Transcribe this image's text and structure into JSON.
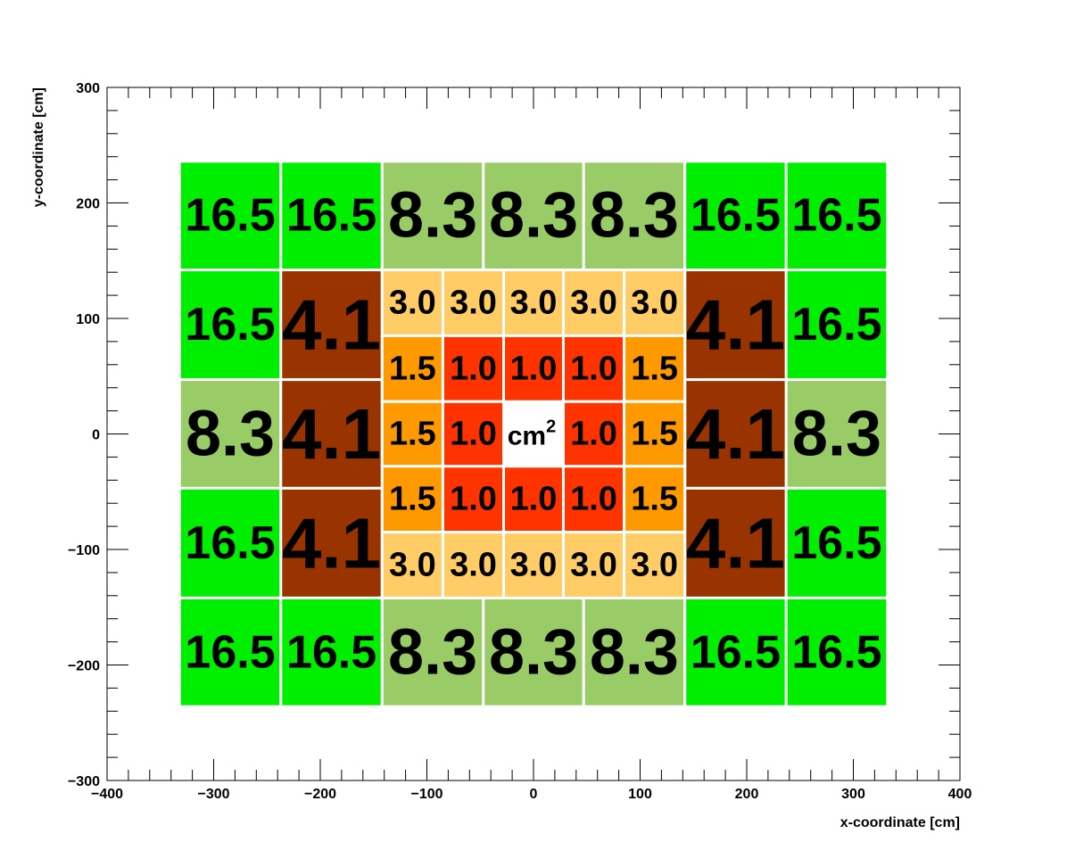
{
  "chart_data": {
    "type": "heatmap",
    "title": "",
    "xlabel": "x-coordinate [cm]",
    "ylabel": "y-coordinate [cm]",
    "xlim": [
      -400,
      400
    ],
    "ylim": [
      -300,
      300
    ],
    "x_ticks": [
      "−400",
      "−300",
      "−200",
      "−100",
      "0",
      "100",
      "200",
      "300",
      "400"
    ],
    "x_tick_values": [
      -400,
      -300,
      -200,
      -100,
      0,
      100,
      200,
      300,
      400
    ],
    "y_ticks": [
      "−300",
      "−200",
      "−100",
      "0",
      "100",
      "200",
      "300"
    ],
    "y_tick_values": [
      -300,
      -200,
      -100,
      0,
      100,
      200,
      300
    ],
    "grid": false,
    "colors": {
      "16.5": "#00ee00",
      "8.3": "#99cc66",
      "4.1": "#993300",
      "3.0": "#ffcc66",
      "1.5": "#ff9900",
      "1.0": "#ff3300",
      "center": "#ffffff"
    },
    "center_label": {
      "text": "cm",
      "superscript": "2",
      "x": 0,
      "y": 0
    },
    "cells": [
      {
        "x0": -332,
        "x1": -237,
        "y0": 142,
        "y1": 236,
        "label": "16.5"
      },
      {
        "x0": -237,
        "x1": -142,
        "y0": 142,
        "y1": 236,
        "label": "16.5"
      },
      {
        "x0": -142,
        "x1": -47,
        "y0": 142,
        "y1": 236,
        "label": "8.3"
      },
      {
        "x0": -47,
        "x1": 47,
        "y0": 142,
        "y1": 236,
        "label": "8.3"
      },
      {
        "x0": 47,
        "x1": 142,
        "y0": 142,
        "y1": 236,
        "label": "8.3"
      },
      {
        "x0": 142,
        "x1": 237,
        "y0": 142,
        "y1": 236,
        "label": "16.5"
      },
      {
        "x0": 237,
        "x1": 332,
        "y0": 142,
        "y1": 236,
        "label": "16.5"
      },
      {
        "x0": -332,
        "x1": -237,
        "y0": 47,
        "y1": 142,
        "label": "16.5"
      },
      {
        "x0": -237,
        "x1": -142,
        "y0": 47,
        "y1": 142,
        "label": "4.1"
      },
      {
        "x0": 142,
        "x1": 237,
        "y0": 47,
        "y1": 142,
        "label": "4.1"
      },
      {
        "x0": 237,
        "x1": 332,
        "y0": 47,
        "y1": 142,
        "label": "16.5"
      },
      {
        "x0": -332,
        "x1": -237,
        "y0": -47,
        "y1": 47,
        "label": "8.3"
      },
      {
        "x0": -237,
        "x1": -142,
        "y0": -47,
        "y1": 47,
        "label": "4.1"
      },
      {
        "x0": 142,
        "x1": 237,
        "y0": -47,
        "y1": 47,
        "label": "4.1"
      },
      {
        "x0": 237,
        "x1": 332,
        "y0": -47,
        "y1": 47,
        "label": "8.3"
      },
      {
        "x0": -332,
        "x1": -237,
        "y0": -142,
        "y1": -47,
        "label": "16.5"
      },
      {
        "x0": -237,
        "x1": -142,
        "y0": -142,
        "y1": -47,
        "label": "4.1"
      },
      {
        "x0": 142,
        "x1": 237,
        "y0": -142,
        "y1": -47,
        "label": "4.1"
      },
      {
        "x0": 237,
        "x1": 332,
        "y0": -142,
        "y1": -47,
        "label": "16.5"
      },
      {
        "x0": -332,
        "x1": -237,
        "y0": -236,
        "y1": -142,
        "label": "16.5"
      },
      {
        "x0": -237,
        "x1": -142,
        "y0": -236,
        "y1": -142,
        "label": "16.5"
      },
      {
        "x0": -142,
        "x1": -47,
        "y0": -236,
        "y1": -142,
        "label": "8.3"
      },
      {
        "x0": -47,
        "x1": 47,
        "y0": -236,
        "y1": -142,
        "label": "8.3"
      },
      {
        "x0": 47,
        "x1": 142,
        "y0": -236,
        "y1": -142,
        "label": "8.3"
      },
      {
        "x0": 142,
        "x1": 237,
        "y0": -236,
        "y1": -142,
        "label": "16.5"
      },
      {
        "x0": 237,
        "x1": 332,
        "y0": -236,
        "y1": -142,
        "label": "16.5"
      },
      {
        "x0": -142,
        "x1": -85,
        "y0": 85,
        "y1": 142,
        "label": "3.0"
      },
      {
        "x0": -85,
        "x1": -28,
        "y0": 85,
        "y1": 142,
        "label": "3.0"
      },
      {
        "x0": -28,
        "x1": 28,
        "y0": 85,
        "y1": 142,
        "label": "3.0"
      },
      {
        "x0": 28,
        "x1": 85,
        "y0": 85,
        "y1": 142,
        "label": "3.0"
      },
      {
        "x0": 85,
        "x1": 142,
        "y0": 85,
        "y1": 142,
        "label": "3.0"
      },
      {
        "x0": -142,
        "x1": -85,
        "y0": 28,
        "y1": 85,
        "label": "1.5"
      },
      {
        "x0": -85,
        "x1": -28,
        "y0": 28,
        "y1": 85,
        "label": "1.0"
      },
      {
        "x0": -28,
        "x1": 28,
        "y0": 28,
        "y1": 85,
        "label": "1.0"
      },
      {
        "x0": 28,
        "x1": 85,
        "y0": 28,
        "y1": 85,
        "label": "1.0"
      },
      {
        "x0": 85,
        "x1": 142,
        "y0": 28,
        "y1": 85,
        "label": "1.5"
      },
      {
        "x0": -142,
        "x1": -85,
        "y0": -28,
        "y1": 28,
        "label": "1.5"
      },
      {
        "x0": -85,
        "x1": -28,
        "y0": -28,
        "y1": 28,
        "label": "1.0"
      },
      {
        "x0": 28,
        "x1": 85,
        "y0": -28,
        "y1": 28,
        "label": "1.0"
      },
      {
        "x0": 85,
        "x1": 142,
        "y0": -28,
        "y1": 28,
        "label": "1.5"
      },
      {
        "x0": -142,
        "x1": -85,
        "y0": -85,
        "y1": -28,
        "label": "1.5"
      },
      {
        "x0": -85,
        "x1": -28,
        "y0": -85,
        "y1": -28,
        "label": "1.0"
      },
      {
        "x0": -28,
        "x1": 28,
        "y0": -85,
        "y1": -28,
        "label": "1.0"
      },
      {
        "x0": 28,
        "x1": 85,
        "y0": -85,
        "y1": -28,
        "label": "1.0"
      },
      {
        "x0": 85,
        "x1": 142,
        "y0": -85,
        "y1": -28,
        "label": "1.5"
      },
      {
        "x0": -142,
        "x1": -85,
        "y0": -142,
        "y1": -85,
        "label": "3.0"
      },
      {
        "x0": -85,
        "x1": -28,
        "y0": -142,
        "y1": -85,
        "label": "3.0"
      },
      {
        "x0": -28,
        "x1": 28,
        "y0": -142,
        "y1": -85,
        "label": "3.0"
      },
      {
        "x0": 28,
        "x1": 85,
        "y0": -142,
        "y1": -85,
        "label": "3.0"
      },
      {
        "x0": 85,
        "x1": 142,
        "y0": -142,
        "y1": -85,
        "label": "3.0"
      }
    ]
  }
}
